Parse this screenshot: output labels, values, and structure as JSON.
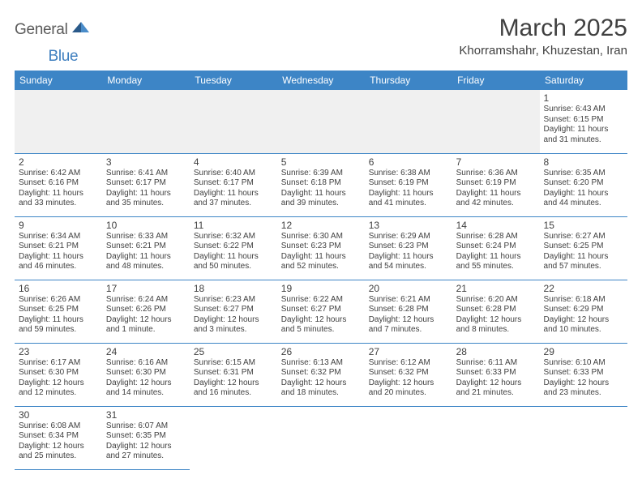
{
  "logo": {
    "text1": "General",
    "text2": "Blue",
    "color_general": "#5a5a5a",
    "color_blue": "#3f7fbf",
    "triangle_color": "#2a5a8a"
  },
  "title": "March 2025",
  "location": "Khorramshahr, Khuzestan, Iran",
  "colors": {
    "header_bg": "#3d85c6",
    "header_text": "#ffffff",
    "cell_border": "#3d85c6",
    "blank_bg": "#f0f0f0",
    "text": "#404040"
  },
  "day_headers": [
    "Sunday",
    "Monday",
    "Tuesday",
    "Wednesday",
    "Thursday",
    "Friday",
    "Saturday"
  ],
  "weeks": [
    [
      null,
      null,
      null,
      null,
      null,
      null,
      {
        "n": "1",
        "sunrise": "6:43 AM",
        "sunset": "6:15 PM",
        "daylight": "11 hours and 31 minutes."
      }
    ],
    [
      {
        "n": "2",
        "sunrise": "6:42 AM",
        "sunset": "6:16 PM",
        "daylight": "11 hours and 33 minutes."
      },
      {
        "n": "3",
        "sunrise": "6:41 AM",
        "sunset": "6:17 PM",
        "daylight": "11 hours and 35 minutes."
      },
      {
        "n": "4",
        "sunrise": "6:40 AM",
        "sunset": "6:17 PM",
        "daylight": "11 hours and 37 minutes."
      },
      {
        "n": "5",
        "sunrise": "6:39 AM",
        "sunset": "6:18 PM",
        "daylight": "11 hours and 39 minutes."
      },
      {
        "n": "6",
        "sunrise": "6:38 AM",
        "sunset": "6:19 PM",
        "daylight": "11 hours and 41 minutes."
      },
      {
        "n": "7",
        "sunrise": "6:36 AM",
        "sunset": "6:19 PM",
        "daylight": "11 hours and 42 minutes."
      },
      {
        "n": "8",
        "sunrise": "6:35 AM",
        "sunset": "6:20 PM",
        "daylight": "11 hours and 44 minutes."
      }
    ],
    [
      {
        "n": "9",
        "sunrise": "6:34 AM",
        "sunset": "6:21 PM",
        "daylight": "11 hours and 46 minutes."
      },
      {
        "n": "10",
        "sunrise": "6:33 AM",
        "sunset": "6:21 PM",
        "daylight": "11 hours and 48 minutes."
      },
      {
        "n": "11",
        "sunrise": "6:32 AM",
        "sunset": "6:22 PM",
        "daylight": "11 hours and 50 minutes."
      },
      {
        "n": "12",
        "sunrise": "6:30 AM",
        "sunset": "6:23 PM",
        "daylight": "11 hours and 52 minutes."
      },
      {
        "n": "13",
        "sunrise": "6:29 AM",
        "sunset": "6:23 PM",
        "daylight": "11 hours and 54 minutes."
      },
      {
        "n": "14",
        "sunrise": "6:28 AM",
        "sunset": "6:24 PM",
        "daylight": "11 hours and 55 minutes."
      },
      {
        "n": "15",
        "sunrise": "6:27 AM",
        "sunset": "6:25 PM",
        "daylight": "11 hours and 57 minutes."
      }
    ],
    [
      {
        "n": "16",
        "sunrise": "6:26 AM",
        "sunset": "6:25 PM",
        "daylight": "11 hours and 59 minutes."
      },
      {
        "n": "17",
        "sunrise": "6:24 AM",
        "sunset": "6:26 PM",
        "daylight": "12 hours and 1 minute."
      },
      {
        "n": "18",
        "sunrise": "6:23 AM",
        "sunset": "6:27 PM",
        "daylight": "12 hours and 3 minutes."
      },
      {
        "n": "19",
        "sunrise": "6:22 AM",
        "sunset": "6:27 PM",
        "daylight": "12 hours and 5 minutes."
      },
      {
        "n": "20",
        "sunrise": "6:21 AM",
        "sunset": "6:28 PM",
        "daylight": "12 hours and 7 minutes."
      },
      {
        "n": "21",
        "sunrise": "6:20 AM",
        "sunset": "6:28 PM",
        "daylight": "12 hours and 8 minutes."
      },
      {
        "n": "22",
        "sunrise": "6:18 AM",
        "sunset": "6:29 PM",
        "daylight": "12 hours and 10 minutes."
      }
    ],
    [
      {
        "n": "23",
        "sunrise": "6:17 AM",
        "sunset": "6:30 PM",
        "daylight": "12 hours and 12 minutes."
      },
      {
        "n": "24",
        "sunrise": "6:16 AM",
        "sunset": "6:30 PM",
        "daylight": "12 hours and 14 minutes."
      },
      {
        "n": "25",
        "sunrise": "6:15 AM",
        "sunset": "6:31 PM",
        "daylight": "12 hours and 16 minutes."
      },
      {
        "n": "26",
        "sunrise": "6:13 AM",
        "sunset": "6:32 PM",
        "daylight": "12 hours and 18 minutes."
      },
      {
        "n": "27",
        "sunrise": "6:12 AM",
        "sunset": "6:32 PM",
        "daylight": "12 hours and 20 minutes."
      },
      {
        "n": "28",
        "sunrise": "6:11 AM",
        "sunset": "6:33 PM",
        "daylight": "12 hours and 21 minutes."
      },
      {
        "n": "29",
        "sunrise": "6:10 AM",
        "sunset": "6:33 PM",
        "daylight": "12 hours and 23 minutes."
      }
    ],
    [
      {
        "n": "30",
        "sunrise": "6:08 AM",
        "sunset": "6:34 PM",
        "daylight": "12 hours and 25 minutes."
      },
      {
        "n": "31",
        "sunrise": "6:07 AM",
        "sunset": "6:35 PM",
        "daylight": "12 hours and 27 minutes."
      },
      null,
      null,
      null,
      null,
      null
    ]
  ],
  "labels": {
    "sunrise": "Sunrise:",
    "sunset": "Sunset:",
    "daylight": "Daylight:"
  }
}
